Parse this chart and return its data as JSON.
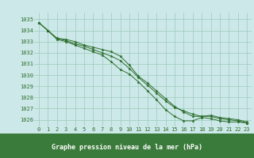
{
  "title": "Graphe pression niveau de la mer (hPa)",
  "background_color": "#cde8e8",
  "plot_bg_color": "#cde8e8",
  "label_bg_color": "#3a7a3a",
  "label_text_color": "#ffffff",
  "grid_color": "#99ccbb",
  "line_color": "#2d6e2d",
  "marker_color": "#2d6e2d",
  "xlim": [
    -0.5,
    23.5
  ],
  "ylim": [
    1025.4,
    1035.6
  ],
  "yticks": [
    1026,
    1027,
    1028,
    1029,
    1030,
    1031,
    1032,
    1033,
    1034,
    1035
  ],
  "xticks": [
    0,
    1,
    2,
    3,
    4,
    5,
    6,
    7,
    8,
    9,
    10,
    11,
    12,
    13,
    14,
    15,
    16,
    17,
    18,
    19,
    20,
    21,
    22,
    23
  ],
  "series": [
    [
      1034.7,
      1034.0,
      1033.2,
      1033.0,
      1032.7,
      1032.4,
      1032.1,
      1031.8,
      1031.2,
      1030.5,
      1030.1,
      1029.4,
      1028.6,
      1027.8,
      1026.9,
      1026.3,
      1025.9,
      1025.9,
      1026.2,
      1026.1,
      1025.9,
      1025.8,
      1025.8,
      1025.7
    ],
    [
      1034.7,
      1034.0,
      1033.3,
      1033.2,
      1033.0,
      1032.7,
      1032.5,
      1032.3,
      1032.1,
      1031.7,
      1030.9,
      1029.9,
      1029.3,
      1028.6,
      1027.9,
      1027.2,
      1026.7,
      1026.3,
      1026.3,
      1026.4,
      1026.2,
      1026.1,
      1026.0,
      1025.8
    ],
    [
      1034.7,
      1034.0,
      1033.3,
      1033.1,
      1032.8,
      1032.6,
      1032.3,
      1032.0,
      1031.7,
      1031.3,
      1030.6,
      1029.8,
      1029.1,
      1028.4,
      1027.7,
      1027.1,
      1026.8,
      1026.5,
      1026.3,
      1026.3,
      1026.1,
      1026.0,
      1025.9,
      1025.7
    ]
  ]
}
